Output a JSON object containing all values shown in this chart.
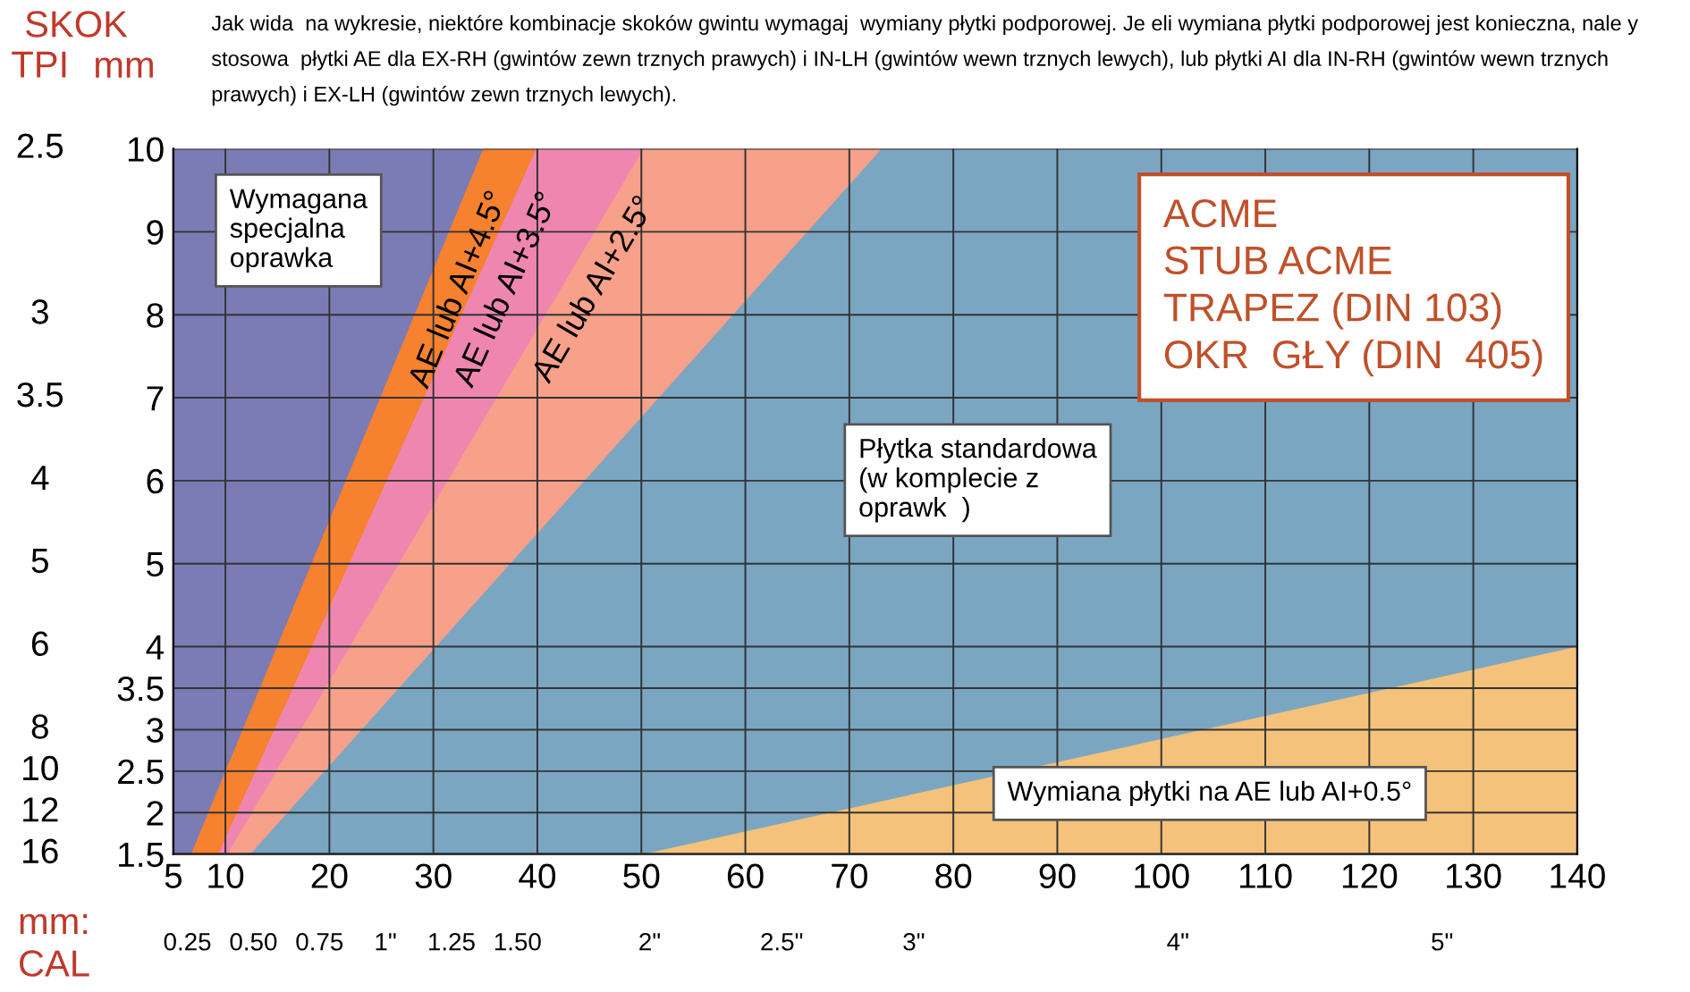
{
  "chart_data": {
    "type": "area",
    "title": "Jak wida  na wykresie, niektóre kombinacje skoków gwintu wymagaj  wymiany płytki podporowej. Je eli wymiana płytki podporowej jest konieczna, nale y stosowa  płytki AE dla EX-RH (gwintów zewn trznych prawych) i IN-LH (gwintów wewn trznych lewych), lub płytki AI dla IN-RH (gwintów wewn trznych prawych) i EX-LH (gwintów zewn trznych lewych).",
    "subtitle": "ACME\nSTUB ACME\nTRAPEZ (DIN 103)\nOKR  GŁY (DIN  405)",
    "xlabel": "mm:",
    "x2label": "CAL",
    "ylabel": "mm",
    "y2label": "TPI",
    "annotations": [
      "SKOK",
      "Wymagana\nspecjalna\noprawka",
      "Płytka standardowa\n(w komplecie z\noprawk  )",
      "Wymiana płytki na AE lub AI+0.5°",
      "16",
      "12",
      "10",
      "8",
      "6",
      "5",
      "4",
      "3.5",
      "3",
      "2.5"
    ],
    "series": [
      {
        "color": "#7b7bb5",
        "x": [
          5,
          140
        ],
        "values": [
          10,
          10
        ]
      },
      {
        "name": "AE lub AI+4.5°",
        "color": "#f6812e",
        "x": [
          6.7,
          34.8,
          140
        ],
        "values": [
          1.5,
          10,
          10
        ]
      },
      {
        "name": "AE lub AI+3.5°",
        "color": "#ef86b0",
        "x": [
          9.3,
          39.9,
          140
        ],
        "values": [
          1.5,
          10,
          10
        ]
      },
      {
        "name": "AE lub AI+2.5°",
        "color": "#f7a08a",
        "x": [
          10.2,
          50.2,
          140
        ],
        "values": [
          1.5,
          10,
          10
        ]
      },
      {
        "color": "#7aa6c2",
        "x": [
          12.4,
          73.1,
          140
        ],
        "values": [
          1.5,
          10,
          10
        ]
      },
      {
        "color": "#f4c27a",
        "x": [
          50.2,
          140
        ],
        "values": [
          1.5,
          4
        ]
      }
    ],
    "xlim": [
      5,
      140
    ],
    "xticks": [
      5,
      10,
      20,
      30,
      40,
      50,
      60,
      70,
      80,
      90,
      100,
      110,
      120,
      130,
      140
    ],
    "x2lim": [
      0.197,
      5.512
    ],
    "x2ticks": [
      0.25,
      {
        "value": 0.5,
        "label": "0.50"
      },
      0.75,
      {
        "value": 1,
        "label": "1\""
      },
      1.25,
      {
        "value": 1.5,
        "label": "1.50"
      },
      {
        "value": 2,
        "label": "2\""
      },
      {
        "value": 2.5,
        "label": "2.5\""
      },
      {
        "value": 3,
        "label": "3\""
      },
      {
        "value": 4,
        "label": "4\""
      },
      {
        "value": 5,
        "label": "5\""
      }
    ],
    "ylim": [
      1.5,
      10
    ],
    "yticks": [
      1.5,
      2,
      2.5,
      3,
      3.5,
      4,
      5,
      6,
      7,
      8,
      9,
      10
    ],
    "grid": true
  }
}
